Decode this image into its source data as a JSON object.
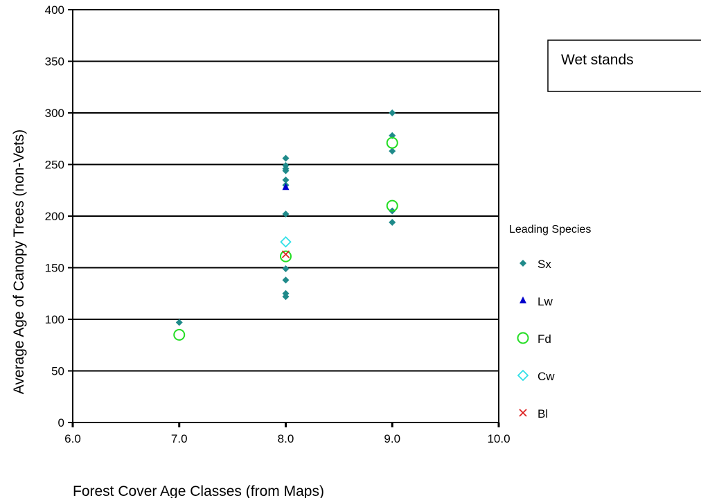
{
  "chart_data": {
    "type": "scatter",
    "title": "",
    "xlabel": "Forest Cover Age Classes (from Maps)",
    "ylabel": "Average Age of Canopy Trees (non-Vets)",
    "xlim": [
      6.0,
      10.0
    ],
    "ylim": [
      0,
      400
    ],
    "x_ticks": [
      6.0,
      7.0,
      8.0,
      9.0,
      10.0
    ],
    "x_tick_labels": [
      "6.0",
      "7.0",
      "8.0",
      "9.0",
      "10.0"
    ],
    "y_ticks": [
      0,
      50,
      100,
      150,
      200,
      250,
      300,
      350,
      400
    ],
    "y_tick_labels": [
      "0",
      "50",
      "100",
      "150",
      "200",
      "250",
      "300",
      "350",
      "400"
    ],
    "grid": "horizontal",
    "legend_title": "Leading Species",
    "legend_placement": "right",
    "annotation": "Wet stands",
    "series": [
      {
        "name": "Sx",
        "marker": "diamond-filled",
        "color": "#1f8a8a",
        "points": [
          [
            7.0,
            97
          ],
          [
            8.0,
            256
          ],
          [
            8.0,
            249
          ],
          [
            8.0,
            246
          ],
          [
            8.0,
            244
          ],
          [
            8.0,
            235
          ],
          [
            8.0,
            230
          ],
          [
            8.0,
            202
          ],
          [
            8.0,
            149
          ],
          [
            8.0,
            138
          ],
          [
            8.0,
            125
          ],
          [
            8.0,
            122
          ],
          [
            9.0,
            300
          ],
          [
            9.0,
            278
          ],
          [
            9.0,
            263
          ],
          [
            9.0,
            205
          ],
          [
            9.0,
            194
          ]
        ]
      },
      {
        "name": "Lw",
        "marker": "triangle-filled",
        "color": "#0000cc",
        "points": [
          [
            8.0,
            228
          ]
        ]
      },
      {
        "name": "Fd",
        "marker": "circle-open",
        "color": "#22dd22",
        "points": [
          [
            7.0,
            85
          ],
          [
            8.0,
            161
          ],
          [
            9.0,
            271
          ],
          [
            9.0,
            210
          ]
        ]
      },
      {
        "name": "Cw",
        "marker": "diamond-open",
        "color": "#33e0e8",
        "points": [
          [
            8.0,
            175
          ]
        ]
      },
      {
        "name": "Bl",
        "marker": "x",
        "color": "#dd2222",
        "points": [
          [
            8.0,
            163
          ]
        ]
      }
    ]
  }
}
